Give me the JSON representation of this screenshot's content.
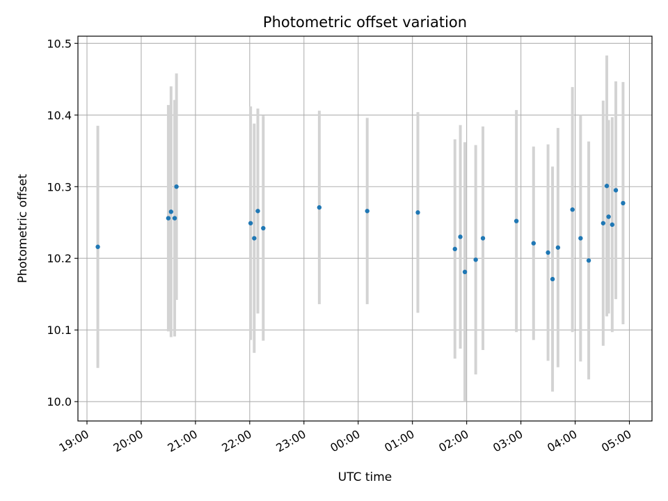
{
  "chart_data": {
    "type": "scatter",
    "title": "Photometric offset variation",
    "xlabel": "UTC time",
    "ylabel": "Photometric offset",
    "x_tick_labels": [
      "19:00",
      "20:00",
      "21:00",
      "22:00",
      "23:00",
      "00:00",
      "01:00",
      "02:00",
      "03:00",
      "04:00",
      "05:00"
    ],
    "y_tick_values": [
      10.0,
      10.1,
      10.2,
      10.3,
      10.4,
      10.5
    ],
    "y_tick_labels": [
      "10.0",
      "10.1",
      "10.2",
      "10.3",
      "10.4",
      "10.5"
    ],
    "xlim": [
      "18:50",
      "05:25"
    ],
    "ylim": [
      9.973,
      10.51
    ],
    "grid": true,
    "colors": {
      "point": "#1f77b4",
      "errorbar": "#d3d3d3",
      "grid": "#b0b0b0"
    },
    "points": [
      {
        "x": "19:12",
        "y": 10.216,
        "err": 0.169
      },
      {
        "x": "20:30",
        "y": 10.256,
        "err": 0.158
      },
      {
        "x": "20:33",
        "y": 10.265,
        "err": 0.175
      },
      {
        "x": "20:37",
        "y": 10.256,
        "err": 0.165
      },
      {
        "x": "20:39",
        "y": 10.3,
        "err": 0.158
      },
      {
        "x": "22:01",
        "y": 10.249,
        "err": 0.163
      },
      {
        "x": "22:05",
        "y": 10.228,
        "err": 0.16
      },
      {
        "x": "22:09",
        "y": 10.266,
        "err": 0.143
      },
      {
        "x": "22:15",
        "y": 10.242,
        "err": 0.157
      },
      {
        "x": "23:17",
        "y": 10.271,
        "err": 0.135
      },
      {
        "x": "00:10",
        "y": 10.266,
        "err": 0.13
      },
      {
        "x": "01:06",
        "y": 10.264,
        "err": 0.14
      },
      {
        "x": "01:47",
        "y": 10.213,
        "err": 0.153
      },
      {
        "x": "01:53",
        "y": 10.23,
        "err": 0.156
      },
      {
        "x": "01:58",
        "y": 10.181,
        "err": 0.181
      },
      {
        "x": "02:10",
        "y": 10.198,
        "err": 0.16
      },
      {
        "x": "02:18",
        "y": 10.228,
        "err": 0.156
      },
      {
        "x": "02:55",
        "y": 10.252,
        "err": 0.155
      },
      {
        "x": "03:14",
        "y": 10.221,
        "err": 0.135
      },
      {
        "x": "03:30",
        "y": 10.208,
        "err": 0.151
      },
      {
        "x": "03:35",
        "y": 10.171,
        "err": 0.157
      },
      {
        "x": "03:41",
        "y": 10.215,
        "err": 0.167
      },
      {
        "x": "03:57",
        "y": 10.268,
        "err": 0.171
      },
      {
        "x": "04:06",
        "y": 10.228,
        "err": 0.172
      },
      {
        "x": "04:15",
        "y": 10.197,
        "err": 0.166
      },
      {
        "x": "04:31",
        "y": 10.249,
        "err": 0.171
      },
      {
        "x": "04:35",
        "y": 10.301,
        "err": 0.182
      },
      {
        "x": "04:37",
        "y": 10.258,
        "err": 0.135
      },
      {
        "x": "04:41",
        "y": 10.247,
        "err": 0.15
      },
      {
        "x": "04:45",
        "y": 10.295,
        "err": 0.152
      },
      {
        "x": "04:53",
        "y": 10.277,
        "err": 0.169
      }
    ]
  }
}
